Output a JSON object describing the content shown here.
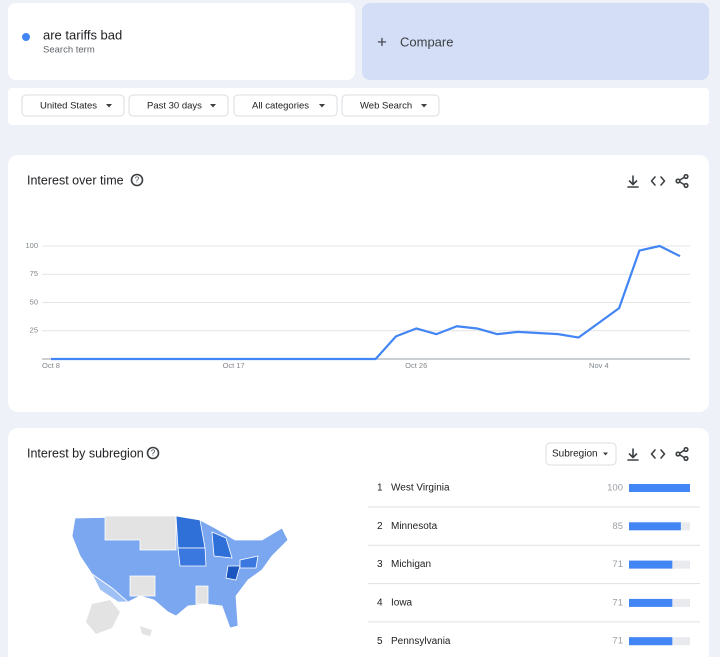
{
  "search": {
    "term": "are tariffs bad",
    "sublabel": "Search term",
    "compare": "Compare"
  },
  "filters": [
    "United States",
    "Past 30 days",
    "All categories",
    "Web Search"
  ],
  "chart_data": {
    "type": "line",
    "title": "Interest over time",
    "categories": [
      "Oct 8",
      null,
      null,
      null,
      null,
      null,
      null,
      null,
      null,
      "Oct 17",
      null,
      null,
      null,
      null,
      null,
      null,
      null,
      null,
      "Oct 26",
      null,
      null,
      null,
      null,
      null,
      null,
      null,
      null,
      "Nov 4",
      null,
      null,
      null,
      null
    ],
    "values": [
      0,
      0,
      0,
      0,
      0,
      0,
      0,
      0,
      0,
      0,
      0,
      0,
      0,
      0,
      0,
      0,
      0,
      20,
      27,
      22,
      29,
      27,
      22,
      24,
      23,
      22,
      19,
      32,
      45,
      96,
      100,
      91
    ],
    "color": "#4285f4",
    "ylim": [
      0,
      100
    ],
    "yticks": [
      25,
      50,
      75,
      100
    ],
    "grid": true
  },
  "subregion": {
    "title": "Interest by subregion",
    "dropdown": "Subregion",
    "rows": [
      {
        "rank": 1,
        "name": "West Virginia",
        "value": 100
      },
      {
        "rank": 2,
        "name": "Minnesota",
        "value": 85
      },
      {
        "rank": 3,
        "name": "Michigan",
        "value": 71
      },
      {
        "rank": 4,
        "name": "Iowa",
        "value": 71
      },
      {
        "rank": 5,
        "name": "Pennsylvania",
        "value": 71
      }
    ]
  }
}
